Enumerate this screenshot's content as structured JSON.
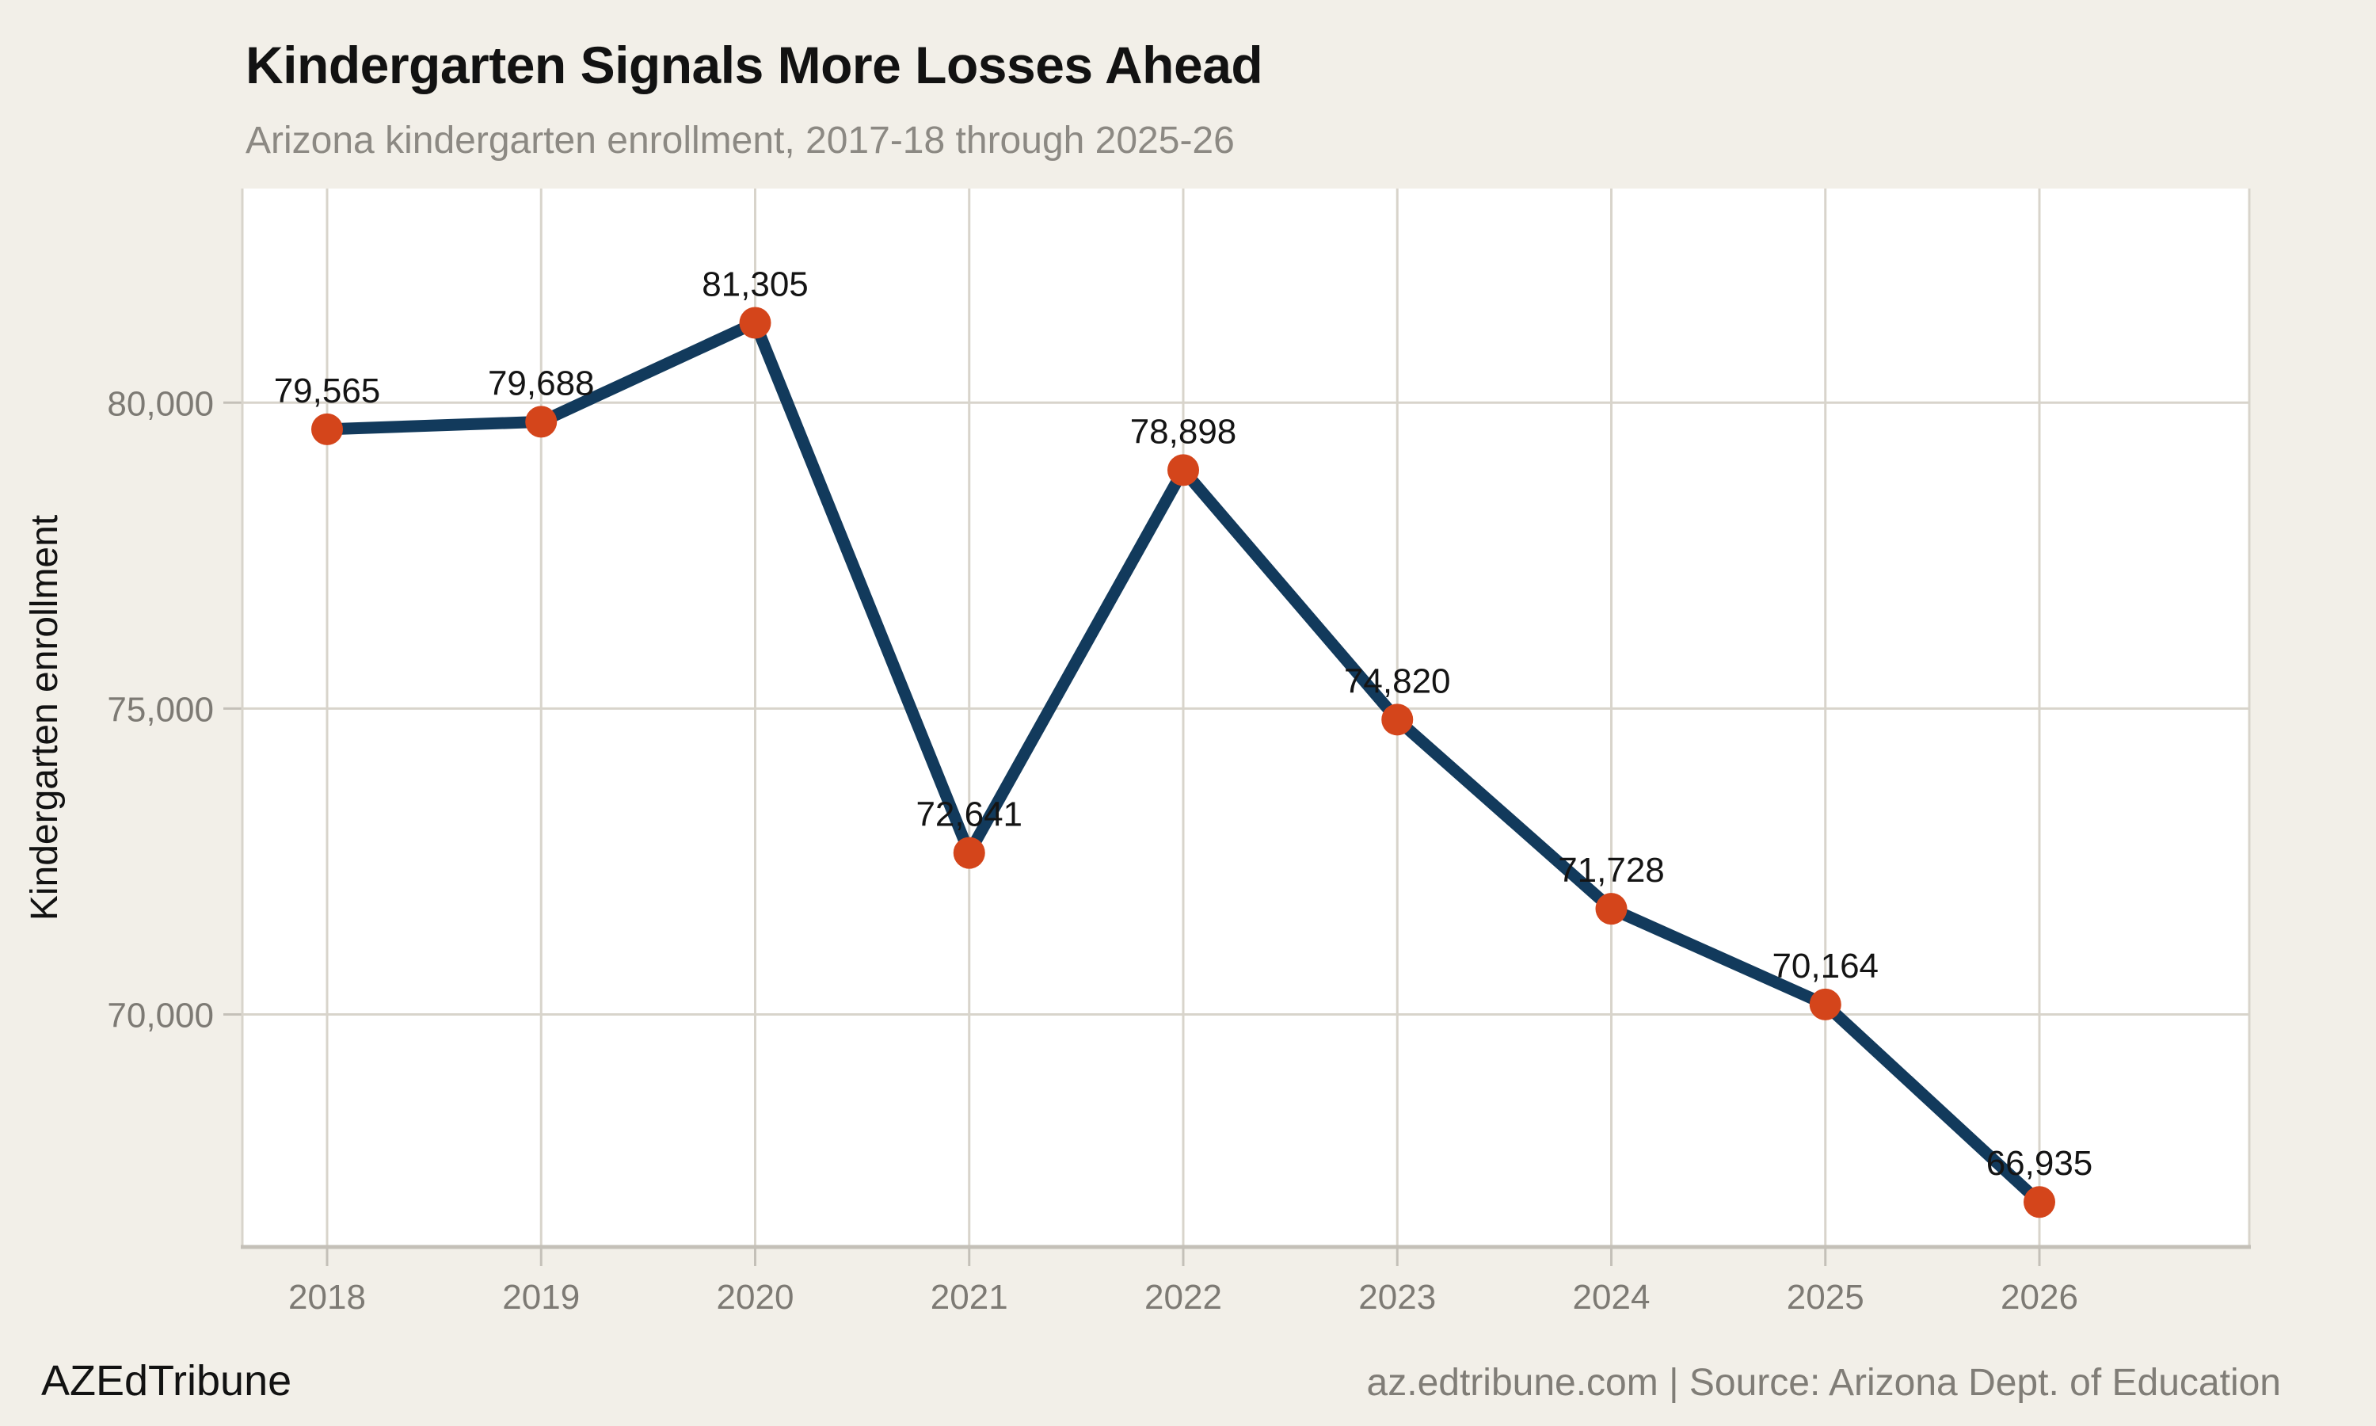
{
  "page": {
    "background": "#F2EFE8"
  },
  "header": {
    "title": "Kindergarten Signals More Losses Ahead",
    "subtitle": "Arizona kindergarten enrollment, 2017-18 through 2025-26"
  },
  "footer": {
    "brand": "AZEdTribune",
    "credit": "az.edtribune.com | Source: Arizona Dept. of Education"
  },
  "chart_data": {
    "type": "line",
    "title": "Kindergarten Signals More Losses Ahead",
    "subtitle": "Arizona kindergarten enrollment, 2017-18 through 2025-26",
    "xlabel": "",
    "ylabel": "Kindergarten enrollment",
    "categories": [
      "2018",
      "2019",
      "2020",
      "2021",
      "2022",
      "2023",
      "2024",
      "2025",
      "2026"
    ],
    "series": [
      {
        "name": "Arizona kindergarten enrollment",
        "values": [
          79565,
          79688,
          81305,
          72641,
          78898,
          74820,
          71728,
          70164,
          66935
        ],
        "labels": [
          "79,565",
          "79,688",
          "81,305",
          "72,641",
          "78,898",
          "74,820",
          "71,728",
          "70,164",
          "66,935"
        ]
      }
    ],
    "yticks": [
      {
        "value": 70000,
        "label": "70,000"
      },
      {
        "value": 75000,
        "label": "75,000"
      },
      {
        "value": 80000,
        "label": "80,000"
      }
    ],
    "ylim": [
      66200,
      83500
    ],
    "grid": true,
    "legend": "none",
    "colors": {
      "page_bg": "#F2EFE8",
      "plot_bg": "#FFFFFF",
      "grid": "#D8D4CB",
      "axis": "#C4C0B8",
      "line": "#123A5C",
      "point": "#D4451B",
      "tick_label": "#7D7A74",
      "data_label": "#141414",
      "title": "#121212",
      "subtitle": "#8C8983"
    }
  }
}
